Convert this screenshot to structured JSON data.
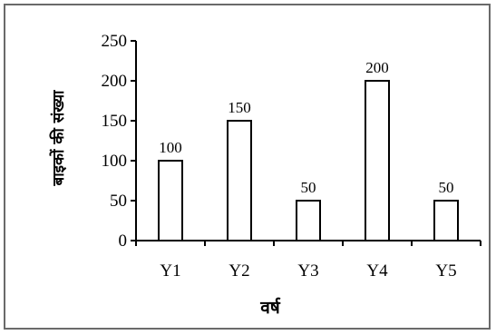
{
  "chart_data": {
    "type": "bar",
    "categories": [
      "Y1",
      "Y2",
      "Y3",
      "Y4",
      "Y5"
    ],
    "values": [
      100,
      150,
      50,
      200,
      50
    ],
    "data_labels": [
      "100",
      "150",
      "50",
      "200",
      "50"
    ],
    "xlabel": "वर्ष",
    "ylabel": "बाइकों की संख्या",
    "ylim": [
      0,
      250
    ],
    "yticks": [
      "0",
      "50",
      "100",
      "150",
      "200",
      "250"
    ],
    "grid": false,
    "legend": "none",
    "bar_fill": "#ffffff",
    "bar_stroke": "#000000"
  }
}
